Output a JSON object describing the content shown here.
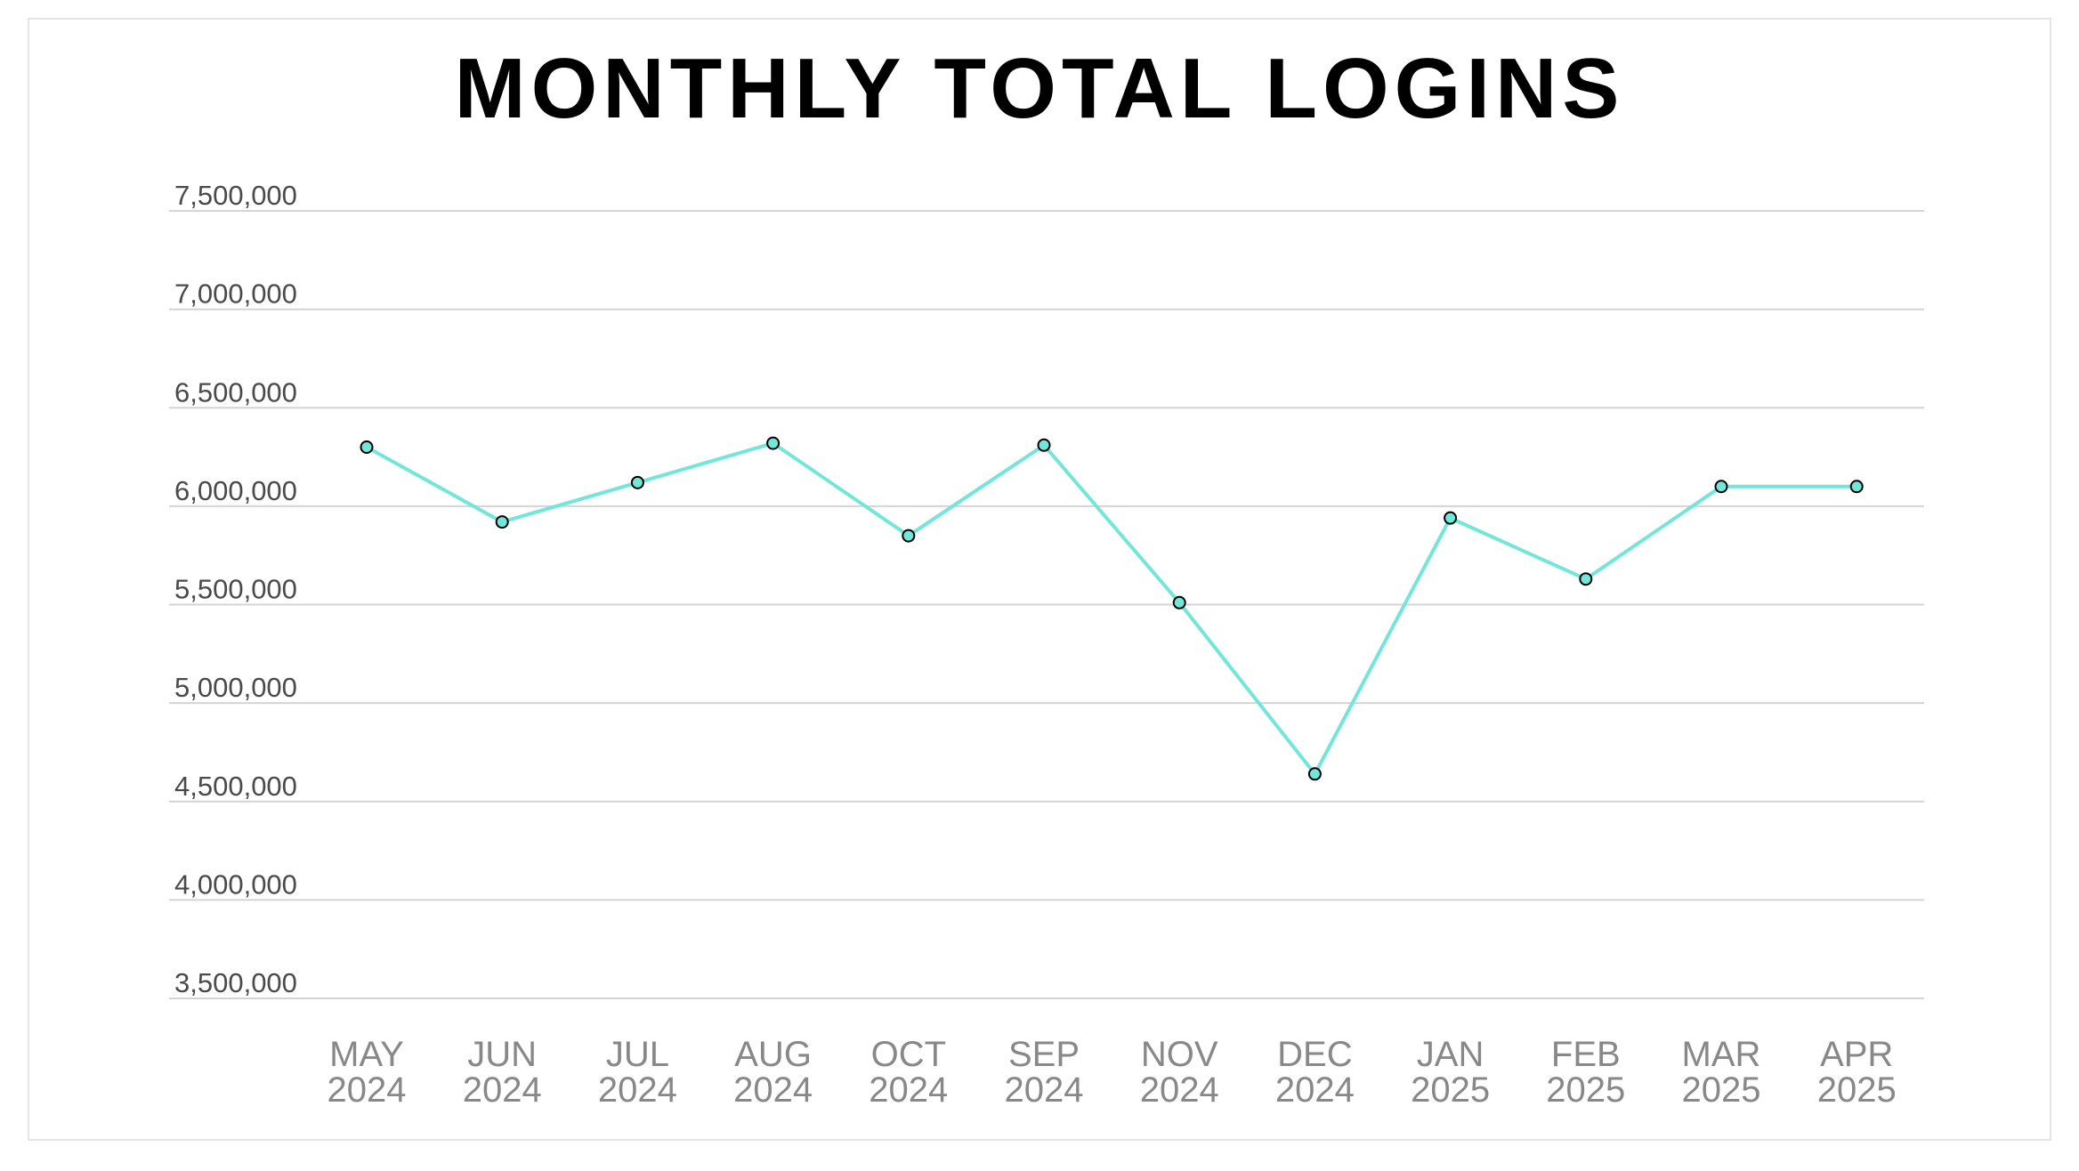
{
  "chart_data": {
    "type": "line",
    "title": "MONTHLY TOTAL LOGINS",
    "xlabel": "",
    "ylabel": "",
    "categories": [
      [
        "MAY",
        "2024"
      ],
      [
        "JUN",
        "2024"
      ],
      [
        "JUL",
        "2024"
      ],
      [
        "AUG",
        "2024"
      ],
      [
        "OCT",
        "2024"
      ],
      [
        "SEP",
        "2024"
      ],
      [
        "NOV",
        "2024"
      ],
      [
        "DEC",
        "2024"
      ],
      [
        "JAN",
        "2025"
      ],
      [
        "FEB",
        "2025"
      ],
      [
        "MAR",
        "2025"
      ],
      [
        "APR",
        "2025"
      ]
    ],
    "series": [
      {
        "values": [
          6300000,
          5920000,
          6120000,
          6320000,
          5850000,
          6310000,
          5510000,
          4640000,
          5940000,
          5630000,
          6100000,
          6100000
        ]
      }
    ],
    "ylim": [
      3500000,
      7500000
    ],
    "yticks": [
      3500000,
      4000000,
      4500000,
      5000000,
      5500000,
      6000000,
      6500000,
      7000000,
      7500000
    ],
    "ytick_labels": [
      "3,500,000",
      "4,000,000",
      "4,500,000",
      "5,000,000",
      "5,500,000",
      "6,000,000",
      "6,500,000",
      "7,000,000",
      "7,500,000"
    ],
    "grid": "horizontal",
    "legend": "none",
    "colors": {
      "line": "#72e6d9",
      "marker_fill": "#72e6d9",
      "marker_edge": "#000000",
      "gridline": "#d4d4d4"
    }
  }
}
